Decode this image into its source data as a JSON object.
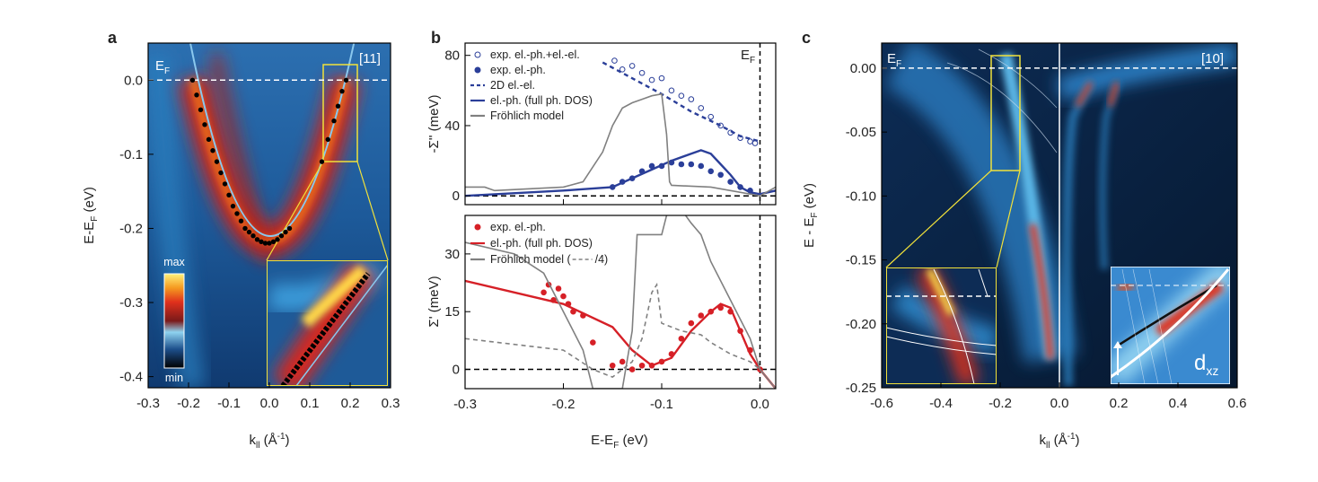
{
  "chart_data": [
    {
      "type": "image",
      "label": "a",
      "xlabel": [
        "k",
        "ll",
        " (Å",
        "-1",
        ")"
      ],
      "ylabel": [
        "E-E",
        "F",
        " (eV)"
      ],
      "xlim": [
        -0.3,
        0.3
      ],
      "ylim": [
        -0.415,
        0.05
      ],
      "xticks": [
        -0.3,
        -0.2,
        -0.1,
        {
          "value": 0,
          "label": "0.0"
        },
        0.1,
        0.2,
        0.3
      ],
      "yticks": [
        {
          "value": 0,
          "label": "0.0"
        },
        -0.1,
        -0.2,
        -0.3,
        -0.4
      ],
      "hline": 0,
      "annotations": {
        "ef": [
          "E",
          "F"
        ],
        "direction": "[11]",
        "colorbar": [
          "max",
          "min"
        ]
      },
      "series": [
        {
          "color": "#000000",
          "x": [
            -0.19,
            -0.18,
            -0.17,
            -0.16,
            -0.15,
            -0.14,
            -0.13,
            -0.12,
            -0.11,
            -0.1,
            -0.09,
            -0.08,
            -0.07,
            -0.06,
            -0.05,
            -0.04,
            -0.03,
            -0.02,
            -0.01,
            0.0,
            0.01,
            0.02,
            0.03,
            0.04,
            0.05,
            0.13,
            0.145,
            0.16,
            0.17,
            0.18,
            0.19
          ],
          "y": [
            0.0,
            -0.02,
            -0.04,
            -0.06,
            -0.08,
            -0.095,
            -0.11,
            -0.125,
            -0.14,
            -0.155,
            -0.17,
            -0.18,
            -0.19,
            -0.2,
            -0.205,
            -0.21,
            -0.215,
            -0.218,
            -0.22,
            -0.22,
            -0.218,
            -0.215,
            -0.21,
            -0.205,
            -0.2,
            -0.11,
            -0.08,
            -0.055,
            -0.035,
            -0.015,
            0.0
          ]
        }
      ]
    },
    {
      "type": "scatter-line",
      "label": "b",
      "ylabel": "-Σ'' (meV)",
      "xlim": [
        -0.3,
        0.016
      ],
      "ylim": [
        -5,
        87
      ],
      "xticks": [
        -0.3,
        -0.2,
        -0.1,
        0
      ],
      "yticks": [
        0,
        40,
        80
      ],
      "hline": 0,
      "vline": 0,
      "annotations": {
        "ef": [
          "E",
          "F"
        ]
      },
      "series": [
        {
          "name": "exp. el.-ph.+el.-el.",
          "kind": "scatter",
          "filled": false,
          "color": "#2b3f99",
          "x": [
            -0.148,
            -0.14,
            -0.13,
            -0.12,
            -0.11,
            -0.1,
            -0.09,
            -0.08,
            -0.07,
            -0.06,
            -0.05,
            -0.04,
            -0.03,
            -0.02,
            -0.01,
            -0.005
          ],
          "values": [
            77,
            72,
            74,
            70,
            66,
            67,
            60,
            57,
            55,
            50,
            45,
            40,
            36,
            33,
            31,
            30
          ]
        },
        {
          "name": "exp. el.-ph.",
          "kind": "scatter",
          "filled": true,
          "color": "#2b3f99",
          "x": [
            -0.15,
            -0.14,
            -0.13,
            -0.12,
            -0.11,
            -0.1,
            -0.09,
            -0.08,
            -0.07,
            -0.06,
            -0.05,
            -0.04,
            -0.03,
            -0.02,
            -0.01
          ],
          "values": [
            5,
            8,
            10,
            14,
            17,
            17,
            19,
            18,
            18,
            17,
            14,
            12,
            8,
            5,
            3
          ]
        },
        {
          "name": "2D el.-el.",
          "kind": "line",
          "dashed": true,
          "color": "#2b3f99",
          "x": [
            -0.16,
            -0.13,
            -0.1,
            -0.07,
            -0.04,
            -0.02,
            0
          ],
          "values": [
            76,
            67,
            58,
            48,
            40,
            34,
            31
          ]
        },
        {
          "name": "el.-ph. (full ph. DOS)",
          "kind": "line",
          "dashed": false,
          "color": "#2b3f99",
          "x": [
            -0.3,
            -0.2,
            -0.15,
            -0.13,
            -0.11,
            -0.09,
            -0.07,
            -0.06,
            -0.05,
            -0.04,
            -0.03,
            -0.02,
            -0.01,
            0,
            0.016
          ],
          "values": [
            0,
            3,
            5,
            10,
            15,
            20,
            24,
            26,
            24,
            18,
            12,
            5,
            2,
            1,
            3
          ]
        },
        {
          "name": "Fröhlich model",
          "kind": "line",
          "dashed": false,
          "color": "#808080",
          "x": [
            -0.3,
            -0.28,
            -0.27,
            -0.2,
            -0.18,
            -0.16,
            -0.15,
            -0.14,
            -0.13,
            -0.12,
            -0.11,
            -0.1,
            -0.095,
            -0.092,
            -0.09,
            -0.05,
            0,
            0.016
          ],
          "values": [
            5,
            5,
            3,
            5,
            8,
            25,
            40,
            50,
            53,
            55,
            57,
            58,
            35,
            8,
            6,
            5,
            0,
            5
          ]
        }
      ]
    },
    {
      "type": "scatter-line",
      "xlabel": [
        "E-E",
        "F",
        " (eV)"
      ],
      "ylabel": "Σ' (meV)",
      "xlim": [
        -0.3,
        0.016
      ],
      "ylim": [
        -5,
        40
      ],
      "xticks": [
        -0.3,
        -0.2,
        -0.1,
        {
          "value": 0,
          "label": "0.0"
        }
      ],
      "yticks": [
        0,
        15,
        30
      ],
      "hline": 0,
      "vline": 0,
      "legend_suffix": "/4)",
      "series": [
        {
          "name": "exp. el.-ph.",
          "kind": "scatter",
          "filled": true,
          "color": "#d62027",
          "x": [
            -0.22,
            -0.215,
            -0.21,
            -0.205,
            -0.2,
            -0.195,
            -0.19,
            -0.18,
            -0.17,
            -0.15,
            -0.14,
            -0.13,
            -0.12,
            -0.11,
            -0.1,
            -0.09,
            -0.08,
            -0.07,
            -0.06,
            -0.05,
            -0.04,
            -0.03,
            -0.02,
            -0.01,
            0
          ],
          "values": [
            20,
            22,
            18,
            21,
            19,
            17,
            15,
            14,
            7,
            1,
            2,
            0,
            1,
            1,
            2,
            4,
            8,
            12,
            14,
            15,
            16,
            15,
            10,
            5,
            0
          ]
        },
        {
          "name": "el.-ph. (full ph. DOS)",
          "kind": "line",
          "dashed": false,
          "color": "#d62027",
          "x": [
            -0.3,
            -0.2,
            -0.15,
            -0.13,
            -0.11,
            -0.09,
            -0.07,
            -0.05,
            -0.04,
            -0.03,
            -0.02,
            -0.01,
            0,
            0.016
          ],
          "values": [
            23,
            17,
            11,
            5,
            1,
            3,
            10,
            15,
            17,
            16,
            10,
            4,
            0,
            -5
          ]
        },
        {
          "name": "Fröhlich model (",
          "kind": "line",
          "dashed": false,
          "color": "#808080",
          "x": [
            -0.3,
            -0.25,
            -0.22,
            -0.2,
            -0.18,
            -0.17,
            -0.14,
            -0.13,
            -0.125,
            -0.1,
            -0.09,
            -0.07,
            -0.06,
            -0.05,
            -0.03,
            -0.01,
            0,
            0.016
          ],
          "values": [
            33,
            30,
            25,
            15,
            5,
            -5,
            -5,
            10,
            35,
            35,
            45,
            38,
            35,
            28,
            18,
            8,
            0,
            -5
          ]
        },
        {
          "name": null,
          "kind": "line",
          "dashed": true,
          "color": "#808080",
          "x": [
            -0.3,
            -0.2,
            -0.17,
            -0.15,
            -0.13,
            -0.12,
            -0.11,
            -0.105,
            -0.1,
            -0.08,
            -0.06,
            -0.05,
            -0.03,
            -0.01,
            0
          ],
          "values": [
            8,
            5,
            0,
            -2,
            2,
            8,
            20,
            22,
            12,
            10,
            9,
            7,
            4,
            2,
            0
          ]
        }
      ]
    },
    {
      "type": "image",
      "label": "c",
      "xlabel": [
        "k",
        "ll",
        " (Å",
        "-1",
        ")"
      ],
      "ylabel": [
        "E - E",
        "F",
        " (eV)"
      ],
      "xlim": [
        -0.6,
        0.6
      ],
      "ylim": [
        -0.25,
        0.0196
      ],
      "xticks": [
        -0.6,
        -0.4,
        -0.2,
        {
          "value": 0,
          "label": "0.0"
        },
        0.2,
        0.4,
        0.6
      ],
      "yticks": [
        {
          "value": 0,
          "label": "0.00"
        },
        -0.05,
        {
          "value": -0.1,
          "label": "-0.10"
        },
        -0.15,
        {
          "value": -0.2,
          "label": "-0.20"
        },
        -0.25
      ],
      "hline": 0,
      "vline": 0,
      "annotations": {
        "ef": [
          "E",
          "F"
        ],
        "direction": "[10]",
        "orbital": [
          "d",
          "xz"
        ]
      }
    }
  ]
}
